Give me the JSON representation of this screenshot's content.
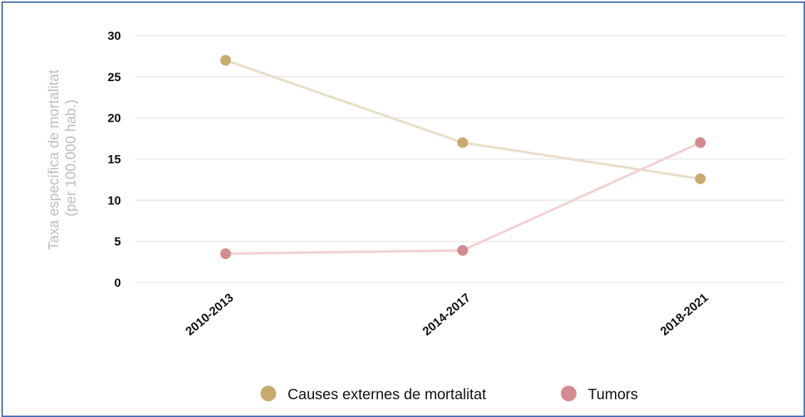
{
  "chart_data": {
    "type": "line",
    "title": "",
    "xlabel": "",
    "ylabel": "Taxa específica de mortalitat\n(per 100.000 hab.)",
    "ylabel_lines": [
      "Taxa específica de mortalitat",
      "(per 100.000 hab.)"
    ],
    "categories": [
      "2010-2013",
      "2014-2017",
      "2018-2021"
    ],
    "yticks": [
      0,
      5,
      10,
      15,
      20,
      25,
      30
    ],
    "ylim": [
      0,
      30
    ],
    "grid": true,
    "legend_position": "bottom",
    "series": [
      {
        "name": "Causes externes de mortalitat",
        "values": [
          27,
          17,
          12.6
        ],
        "marker_color": "#c8aa6e",
        "line_color": "#e9dfc9"
      },
      {
        "name": "Tumors",
        "values": [
          3.5,
          3.9,
          17
        ],
        "marker_color": "#d48a8e",
        "line_color": "#f1d2d3"
      }
    ]
  }
}
